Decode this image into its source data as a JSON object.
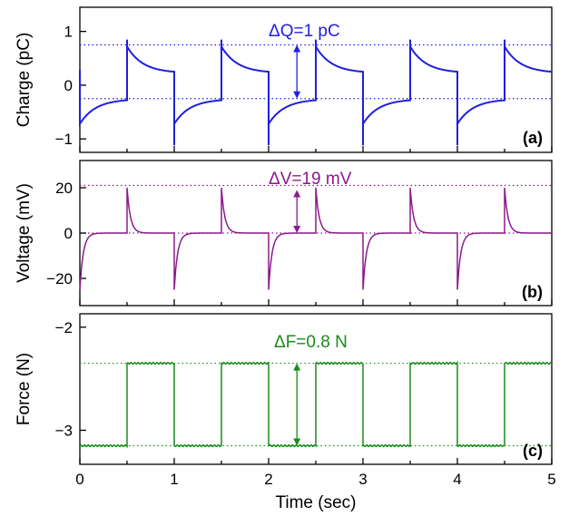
{
  "chart_data": [
    {
      "type": "line",
      "panel_label": "(a)",
      "ylabel": "Charge (pC)",
      "xlim": [
        0,
        5
      ],
      "ylim": [
        -1.25,
        1.45
      ],
      "yticks": [
        1,
        0,
        -1
      ],
      "yticklabels": [
        "1",
        "0",
        "−1"
      ],
      "color": "#1f1fe0",
      "reference_lines": [
        0.75,
        -0.25
      ],
      "annotation": {
        "text": "ΔQ=1 pC",
        "x": 2.3,
        "y_from": -0.25,
        "y_to": 0.75
      },
      "signal": {
        "kind": "decaying_step",
        "period": 1,
        "edges": [
          0.5,
          1,
          1.5,
          2,
          2.5,
          3,
          3.5,
          4,
          4.5
        ],
        "high_start": 0.72,
        "high_end": 0.25,
        "low_start": -0.72,
        "low_end": -0.28,
        "peak_high": 0.85,
        "peak_low": -1.12,
        "initial": {
          "x": 0,
          "y_from": 0.28,
          "y_to": -0.75
        }
      }
    },
    {
      "type": "line",
      "panel_label": "(b)",
      "ylabel": "Voltage (mV)",
      "xlim": [
        0,
        5
      ],
      "ylim": [
        -32,
        32
      ],
      "yticks": [
        20,
        0,
        -20
      ],
      "yticklabels": [
        "20",
        "0",
        "−20"
      ],
      "color": "#8b1a8b",
      "reference_lines": [
        21,
        0
      ],
      "annotation": {
        "text": "ΔV=19 mV",
        "x": 2.3,
        "y_from": 0,
        "y_to": 19
      },
      "signal": {
        "kind": "spikes",
        "edges": [
          0.5,
          1,
          1.5,
          2,
          2.5,
          3,
          3.5,
          4,
          4.5
        ],
        "rise_peak": 20,
        "fall_peak": -25,
        "initial": {
          "x": 0,
          "y": -25
        }
      }
    },
    {
      "type": "line",
      "panel_label": "(c)",
      "ylabel": "Force (N)",
      "xlabel": "Time (sec)",
      "xlim": [
        0,
        5
      ],
      "ylim": [
        -3.33,
        -1.87
      ],
      "yticks": [
        -2,
        -3
      ],
      "yticklabels": [
        "−2",
        "−3"
      ],
      "xticks": [
        0,
        1,
        2,
        3,
        4,
        5
      ],
      "xticklabels": [
        "0",
        "1",
        "2",
        "3",
        "4",
        "5"
      ],
      "color": "#1a8c1a",
      "reference_lines": [
        -2.35,
        -3.15
      ],
      "annotation": {
        "text": "ΔF=0.8 N",
        "x": 2.3,
        "y_from": -3.15,
        "y_to": -2.35
      },
      "signal": {
        "kind": "square",
        "edges": [
          0.5,
          1,
          1.5,
          2,
          2.5,
          3,
          3.5,
          4,
          4.5
        ],
        "high": -2.35,
        "low": -3.15
      }
    }
  ]
}
